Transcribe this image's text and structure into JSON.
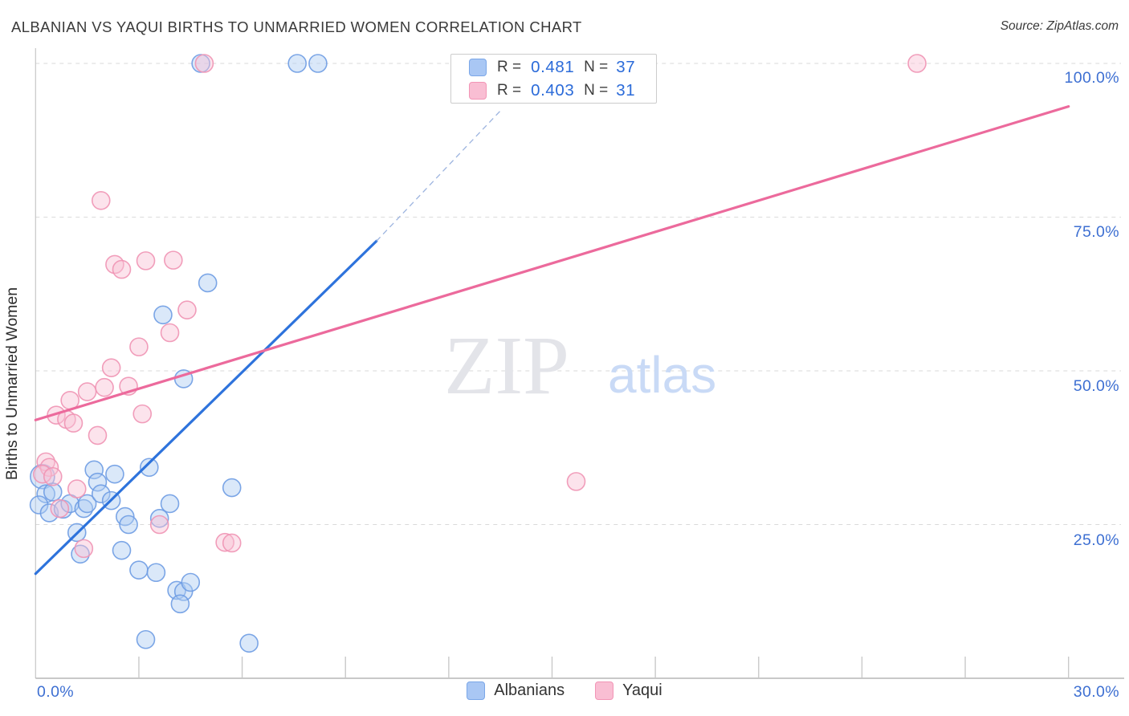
{
  "source": "Source: ZipAtlas.com",
  "watermark": {
    "zip": "ZIP",
    "atlas": "atlas"
  },
  "legend_box": {
    "r_label": "R =",
    "n_label": "N ="
  },
  "colors": {
    "tick_label": "#3d6fd2",
    "grid": "#dadada",
    "axis": "#b5b5b5",
    "value_text": "#2b6bd9",
    "watermark_zip": "#e3e4e9",
    "watermark_atlas": "#c9daf6"
  },
  "chart_data": {
    "type": "scatter",
    "title": "ALBANIAN VS YAQUI BIRTHS TO UNMARRIED WOMEN CORRELATION CHART",
    "xlabel": "",
    "ylabel": "Births to Unmarried Women",
    "xlim": [
      0,
      31.6
    ],
    "ylim": [
      0,
      102.5
    ],
    "grid": "horizontal-dashed",
    "x_axis": {
      "min_label": "0.0%",
      "max_label": "30.0%",
      "tick_values": [
        3,
        6,
        9,
        12,
        15,
        18,
        21,
        24,
        27,
        30
      ]
    },
    "y_axis": {
      "title": "Births to Unmarried Women",
      "ticks": [
        {
          "value": 100,
          "label": "100.0%"
        },
        {
          "value": 75,
          "label": "75.0%"
        },
        {
          "value": 50,
          "label": "50.0%"
        },
        {
          "value": 25,
          "label": "25.0%"
        }
      ]
    },
    "series": [
      {
        "name": "Albanians",
        "r": "0.481",
        "n": "37",
        "fill": "#aecbf2",
        "stroke": "#6e9ce3",
        "points": [
          [
            4.8,
            100
          ],
          [
            7.6,
            100
          ],
          [
            8.2,
            100
          ],
          [
            5.0,
            64.3
          ],
          [
            3.7,
            59.1
          ],
          [
            4.3,
            48.7
          ],
          [
            0.2,
            32.8,
            15
          ],
          [
            0.3,
            30.0
          ],
          [
            0.1,
            28.2
          ],
          [
            0.4,
            26.9
          ],
          [
            0.5,
            30.3
          ],
          [
            0.8,
            27.5
          ],
          [
            1.0,
            28.4
          ],
          [
            1.4,
            27.6
          ],
          [
            1.5,
            28.4
          ],
          [
            1.7,
            33.9
          ],
          [
            1.8,
            31.9
          ],
          [
            1.9,
            30.0
          ],
          [
            2.2,
            28.9
          ],
          [
            2.3,
            33.2
          ],
          [
            2.6,
            26.3
          ],
          [
            2.7,
            25.0
          ],
          [
            1.2,
            23.7
          ],
          [
            3.3,
            34.3
          ],
          [
            3.6,
            26.0
          ],
          [
            3.9,
            28.4
          ],
          [
            1.3,
            20.2
          ],
          [
            2.5,
            20.8
          ],
          [
            3.0,
            17.6
          ],
          [
            3.5,
            17.2
          ],
          [
            4.1,
            14.3
          ],
          [
            4.3,
            14.1
          ],
          [
            4.5,
            15.6
          ],
          [
            4.2,
            12.1
          ],
          [
            3.2,
            6.3
          ],
          [
            6.2,
            5.7
          ],
          [
            5.7,
            31.0
          ]
        ]
      },
      {
        "name": "Yaqui",
        "r": "0.403",
        "n": "31",
        "fill": "#f9c2d4",
        "stroke": "#f093b4",
        "points": [
          [
            4.9,
            100
          ],
          [
            25.6,
            100
          ],
          [
            1.9,
            77.7
          ],
          [
            2.3,
            67.3
          ],
          [
            2.5,
            66.5
          ],
          [
            3.2,
            67.9
          ],
          [
            4.0,
            68.0
          ],
          [
            4.4,
            59.9
          ],
          [
            3.9,
            56.2
          ],
          [
            3.0,
            53.9
          ],
          [
            2.2,
            50.5
          ],
          [
            1.8,
            39.5
          ],
          [
            1.5,
            46.6
          ],
          [
            2.0,
            47.3
          ],
          [
            2.7,
            47.5
          ],
          [
            1.0,
            45.2
          ],
          [
            0.6,
            42.8
          ],
          [
            0.9,
            42.1
          ],
          [
            1.1,
            41.5
          ],
          [
            3.1,
            43.0
          ],
          [
            0.3,
            35.2
          ],
          [
            0.4,
            34.3
          ],
          [
            0.2,
            33.2
          ],
          [
            0.5,
            32.8
          ],
          [
            1.2,
            30.8
          ],
          [
            0.7,
            27.6
          ],
          [
            3.6,
            25.0
          ],
          [
            5.5,
            22.1
          ],
          [
            5.7,
            22.0
          ],
          [
            1.4,
            21.1
          ],
          [
            15.7,
            32.0
          ]
        ]
      }
    ],
    "trendlines": [
      {
        "series": "Albanians",
        "color": "#2e73dc",
        "solid": {
          "x1": 0,
          "y1": 17.0,
          "x2": 9.9,
          "y2": 71.1
        },
        "dashed": {
          "x1": 9.9,
          "y1": 71.1,
          "x2": 13.5,
          "y2": 92.3
        }
      },
      {
        "series": "Yaqui",
        "color": "#ec6a9c",
        "solid": {
          "x1": 0,
          "y1": 42.0,
          "x2": 30.0,
          "y2": 93.0
        }
      }
    ]
  }
}
